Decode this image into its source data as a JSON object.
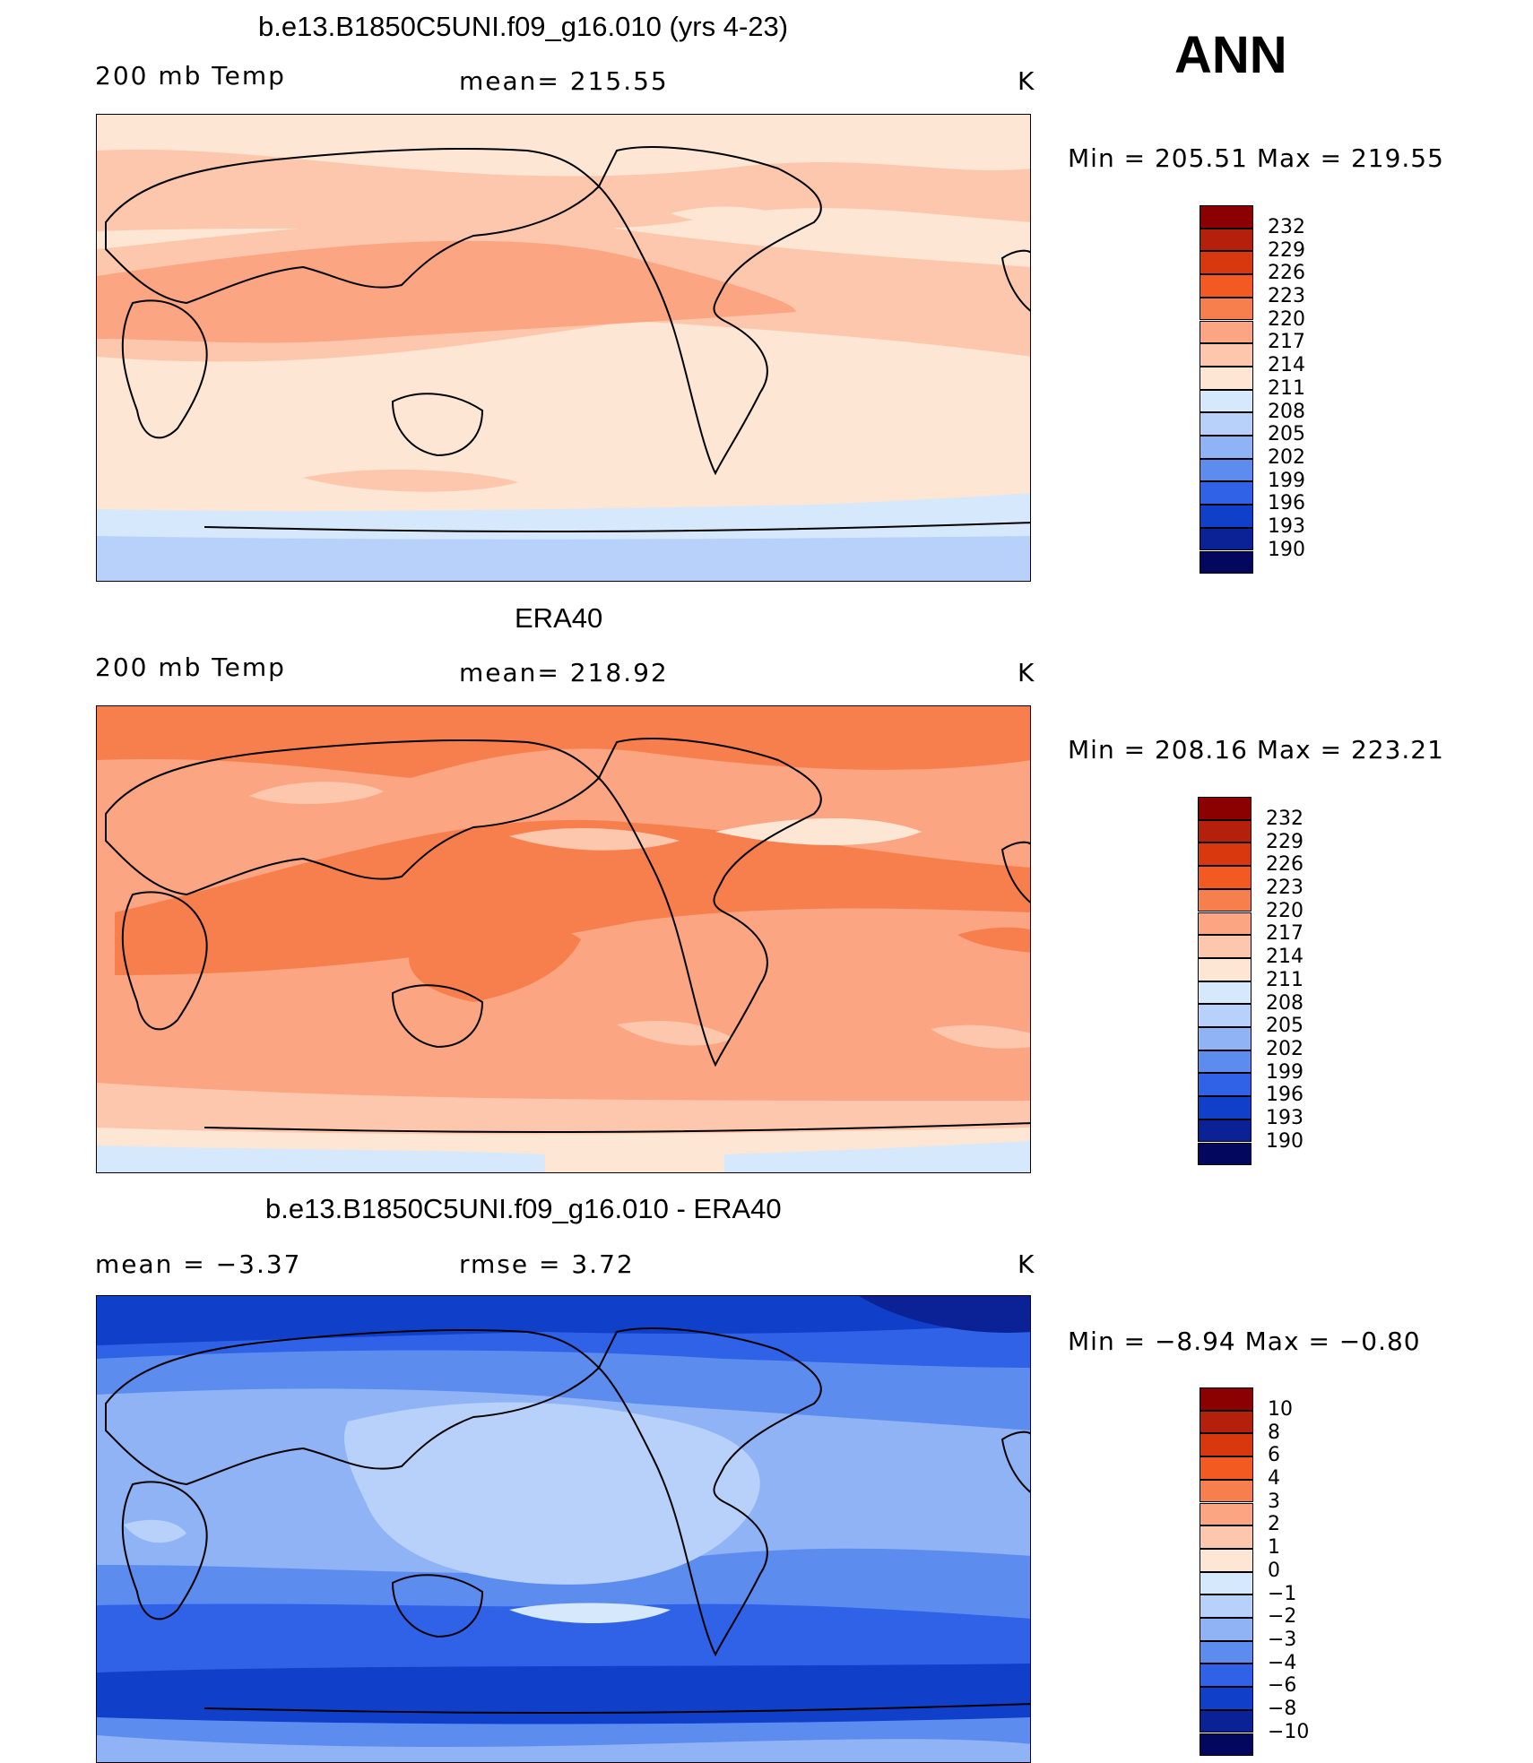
{
  "season": "ANN",
  "units": "K",
  "panels": [
    {
      "title": "b.e13.B1850C5UNI.f09_g16.010 (yrs 4-23)",
      "left_label": "200 mb Temp",
      "center_label": "mean=  215.55",
      "units": "K",
      "minmax": "Min  =  205.51  Max  =  219.55",
      "colorbar": [
        "232",
        "229",
        "226",
        "223",
        "220",
        "217",
        "214",
        "211",
        "208",
        "205",
        "202",
        "199",
        "196",
        "193",
        "190"
      ],
      "colors": [
        "#8b0000",
        "#b5200c",
        "#d9380e",
        "#f25a22",
        "#f77f4d",
        "#fba582",
        "#fdc7ad",
        "#fde6d4",
        "#d6e8fb",
        "#b7d1fa",
        "#8fb3f5",
        "#5d8cef",
        "#2f62e6",
        "#1040c9",
        "#0a2296",
        "#03075e"
      ]
    },
    {
      "title": "ERA40",
      "left_label": "200 mb Temp",
      "center_label": "mean=  218.92",
      "units": "K",
      "minmax": "Min  =  208.16  Max  =  223.21",
      "colorbar": [
        "232",
        "229",
        "226",
        "223",
        "220",
        "217",
        "214",
        "211",
        "208",
        "205",
        "202",
        "199",
        "196",
        "193",
        "190"
      ],
      "colors": [
        "#8b0000",
        "#b5200c",
        "#d9380e",
        "#f25a22",
        "#f77f4d",
        "#fba582",
        "#fdc7ad",
        "#fde6d4",
        "#d6e8fb",
        "#b7d1fa",
        "#8fb3f5",
        "#5d8cef",
        "#2f62e6",
        "#1040c9",
        "#0a2296",
        "#03075e"
      ]
    },
    {
      "title": "b.e13.B1850C5UNI.f09_g16.010 - ERA40",
      "left_label": "mean  =    −3.37",
      "center_label": "rmse  =     3.72",
      "units": "K",
      "minmax": "Min  =    −8.94  Max  =    −0.80",
      "colorbar": [
        "10",
        "8",
        "6",
        "4",
        "3",
        "2",
        "1",
        "0",
        "−1",
        "−2",
        "−3",
        "−4",
        "−6",
        "−8",
        "−10"
      ],
      "colors": [
        "#8b0000",
        "#b5200c",
        "#d9380e",
        "#f25a22",
        "#f77f4d",
        "#fba582",
        "#fdc7ad",
        "#fde6d4",
        "#d6e8fb",
        "#b7d1fa",
        "#8fb3f5",
        "#5d8cef",
        "#2f62e6",
        "#1040c9",
        "#0a2296",
        "#03075e"
      ]
    }
  ]
}
